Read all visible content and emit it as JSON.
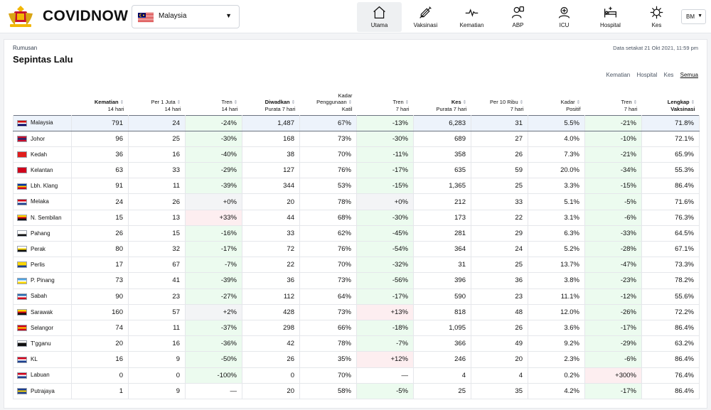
{
  "app": {
    "name": "COVIDNOW"
  },
  "country_select": {
    "value": "Malaysia"
  },
  "nav": [
    {
      "label": "Utama",
      "icon": "home-icon",
      "active": true
    },
    {
      "label": "Vaksinasi",
      "icon": "syringe-icon"
    },
    {
      "label": "Kematian",
      "icon": "heartbeat-icon"
    },
    {
      "label": "ABP",
      "icon": "patient-icon"
    },
    {
      "label": "ICU",
      "icon": "icu-icon"
    },
    {
      "label": "Hospital",
      "icon": "hospital-bed-icon"
    },
    {
      "label": "Kes",
      "icon": "virus-icon"
    }
  ],
  "language": "BM",
  "breadcrumb": "Rumusan",
  "page_title": "Sepintas Lalu",
  "as_of": "Data setakat 21 Okt 2021, 11:59 pm",
  "filters": [
    "Kematian",
    "Hospital",
    "Kes",
    "Semua"
  ],
  "active_filter": "Semua",
  "columns": [
    {
      "l1": "",
      "l2": "",
      "l3": "",
      "bold": ""
    },
    {
      "l1": "Kematian",
      "l2": "14 hari",
      "l3": "",
      "bold": "l1"
    },
    {
      "l1": "Per 1 Juta",
      "l2": "14 hari",
      "l3": "",
      "bold": ""
    },
    {
      "l1": "Tren",
      "l2": "14 hari",
      "l3": "",
      "bold": ""
    },
    {
      "l1": "Diwadkan",
      "l2": "Purata 7 hari",
      "l3": "",
      "bold": "l1"
    },
    {
      "l1": "Kadar",
      "l2": "Penggunaan",
      "l3": "Katil",
      "bold": ""
    },
    {
      "l1": "Tren",
      "l2": "7 hari",
      "l3": "",
      "bold": ""
    },
    {
      "l1": "Kes",
      "l2": "Purata 7 hari",
      "l3": "",
      "bold": "l1"
    },
    {
      "l1": "Per 10 Ribu",
      "l2": "7 hari",
      "l3": "",
      "bold": ""
    },
    {
      "l1": "Kadar",
      "l2": "Positif",
      "l3": "",
      "bold": ""
    },
    {
      "l1": "Tren",
      "l2": "7 hari",
      "l3": "",
      "bold": ""
    },
    {
      "l1": "Lengkap",
      "l2": "Vaksinasi",
      "l3": "",
      "bold": "all"
    }
  ],
  "rows": [
    {
      "state": "Malaysia",
      "flag": [
        "#cc0001",
        "#ffffff",
        "#010066"
      ],
      "v": [
        "791",
        "24",
        "-24%",
        "1,487",
        "67%",
        "-13%",
        "6,283",
        "31",
        "5.5%",
        "-21%",
        "71.8%"
      ],
      "t": [
        "g",
        "g",
        "g"
      ]
    },
    {
      "state": "Johor",
      "flag": [
        "#c8102e",
        "#002b7f",
        "#c8102e"
      ],
      "v": [
        "96",
        "25",
        "-30%",
        "168",
        "73%",
        "-30%",
        "689",
        "27",
        "4.0%",
        "-10%",
        "72.1%"
      ],
      "t": [
        "g",
        "g",
        "g"
      ]
    },
    {
      "state": "Kedah",
      "flag": [
        "#e11d1d",
        "#e11d1d",
        "#e11d1d"
      ],
      "v": [
        "36",
        "16",
        "-40%",
        "38",
        "70%",
        "-11%",
        "358",
        "26",
        "7.3%",
        "-21%",
        "65.9%"
      ],
      "t": [
        "g",
        "g",
        "g"
      ]
    },
    {
      "state": "Kelantan",
      "flag": [
        "#d0021b",
        "#d0021b",
        "#d0021b"
      ],
      "v": [
        "63",
        "33",
        "-29%",
        "127",
        "76%",
        "-17%",
        "635",
        "59",
        "20.0%",
        "-34%",
        "55.3%"
      ],
      "t": [
        "g",
        "g",
        "g"
      ]
    },
    {
      "state": "Lbh. Klang",
      "flag": [
        "#0032a0",
        "#ffcc00",
        "#d0021b"
      ],
      "v": [
        "91",
        "11",
        "-39%",
        "344",
        "53%",
        "-15%",
        "1,365",
        "25",
        "3.3%",
        "-15%",
        "86.4%"
      ],
      "t": [
        "g",
        "g",
        "g"
      ]
    },
    {
      "state": "Melaka",
      "flag": [
        "#d0021b",
        "#ffffff",
        "#1d3f8f"
      ],
      "v": [
        "24",
        "26",
        "+0%",
        "20",
        "78%",
        "+0%",
        "212",
        "33",
        "5.1%",
        "-5%",
        "71.6%"
      ],
      "t": [
        "n",
        "n",
        "g"
      ]
    },
    {
      "state": "N. Sembilan",
      "flag": [
        "#ffd700",
        "#d0021b",
        "#111111"
      ],
      "v": [
        "15",
        "13",
        "+33%",
        "44",
        "68%",
        "-30%",
        "173",
        "22",
        "3.1%",
        "-6%",
        "76.3%"
      ],
      "t": [
        "r",
        "g",
        "g"
      ]
    },
    {
      "state": "Pahang",
      "flag": [
        "#ffffff",
        "#ffffff",
        "#111111"
      ],
      "v": [
        "26",
        "15",
        "-16%",
        "33",
        "62%",
        "-45%",
        "281",
        "29",
        "6.3%",
        "-33%",
        "64.5%"
      ],
      "t": [
        "g",
        "g",
        "g"
      ]
    },
    {
      "state": "Perak",
      "flag": [
        "#ffffff",
        "#ffd700",
        "#111111"
      ],
      "v": [
        "80",
        "32",
        "-17%",
        "72",
        "76%",
        "-54%",
        "364",
        "24",
        "5.2%",
        "-28%",
        "67.1%"
      ],
      "t": [
        "g",
        "g",
        "g"
      ]
    },
    {
      "state": "Perlis",
      "flag": [
        "#ffd700",
        "#ffd700",
        "#1d3f8f"
      ],
      "v": [
        "17",
        "67",
        "-7%",
        "22",
        "70%",
        "-32%",
        "31",
        "25",
        "13.7%",
        "-47%",
        "73.3%"
      ],
      "t": [
        "g",
        "g",
        "g"
      ]
    },
    {
      "state": "P. Pinang",
      "flag": [
        "#4fa3e0",
        "#ffffff",
        "#ffd700"
      ],
      "v": [
        "73",
        "41",
        "-39%",
        "36",
        "73%",
        "-56%",
        "396",
        "36",
        "3.8%",
        "-23%",
        "78.2%"
      ],
      "t": [
        "g",
        "g",
        "g"
      ]
    },
    {
      "state": "Sabah",
      "flag": [
        "#2b6cb0",
        "#ffffff",
        "#d0021b"
      ],
      "v": [
        "90",
        "23",
        "-27%",
        "112",
        "64%",
        "-17%",
        "590",
        "23",
        "11.1%",
        "-12%",
        "55.6%"
      ],
      "t": [
        "g",
        "g",
        "g"
      ]
    },
    {
      "state": "Sarawak",
      "flag": [
        "#ffd700",
        "#d0021b",
        "#111111"
      ],
      "v": [
        "160",
        "57",
        "+2%",
        "428",
        "73%",
        "+13%",
        "818",
        "48",
        "12.0%",
        "-26%",
        "72.2%"
      ],
      "t": [
        "n",
        "r",
        "g"
      ]
    },
    {
      "state": "Selangor",
      "flag": [
        "#d0021b",
        "#ffd700",
        "#d0021b"
      ],
      "v": [
        "74",
        "11",
        "-37%",
        "298",
        "66%",
        "-18%",
        "1,095",
        "26",
        "3.6%",
        "-17%",
        "86.4%"
      ],
      "t": [
        "g",
        "g",
        "g"
      ]
    },
    {
      "state": "T'gganu",
      "flag": [
        "#ffffff",
        "#111111",
        "#111111"
      ],
      "v": [
        "20",
        "16",
        "-36%",
        "42",
        "78%",
        "-7%",
        "366",
        "49",
        "9.2%",
        "-29%",
        "63.2%"
      ],
      "t": [
        "g",
        "g",
        "g"
      ]
    },
    {
      "state": "KL",
      "flag": [
        "#d0021b",
        "#ffffff",
        "#1d3f8f"
      ],
      "v": [
        "16",
        "9",
        "-50%",
        "26",
        "35%",
        "+12%",
        "246",
        "20",
        "2.3%",
        "-6%",
        "86.4%"
      ],
      "t": [
        "g",
        "r",
        "g"
      ]
    },
    {
      "state": "Labuan",
      "flag": [
        "#d0021b",
        "#ffffff",
        "#1d3f8f"
      ],
      "v": [
        "0",
        "0",
        "-100%",
        "0",
        "70%",
        "—",
        "4",
        "4",
        "0.2%",
        "+300%",
        "76.4%"
      ],
      "t": [
        "g",
        "",
        "r"
      ]
    },
    {
      "state": "Putrajaya",
      "flag": [
        "#1d3f8f",
        "#ffd700",
        "#1d3f8f"
      ],
      "v": [
        "1",
        "9",
        "—",
        "20",
        "58%",
        "-5%",
        "25",
        "35",
        "4.2%",
        "-17%",
        "86.4%"
      ],
      "t": [
        "",
        "g",
        "g"
      ]
    }
  ]
}
